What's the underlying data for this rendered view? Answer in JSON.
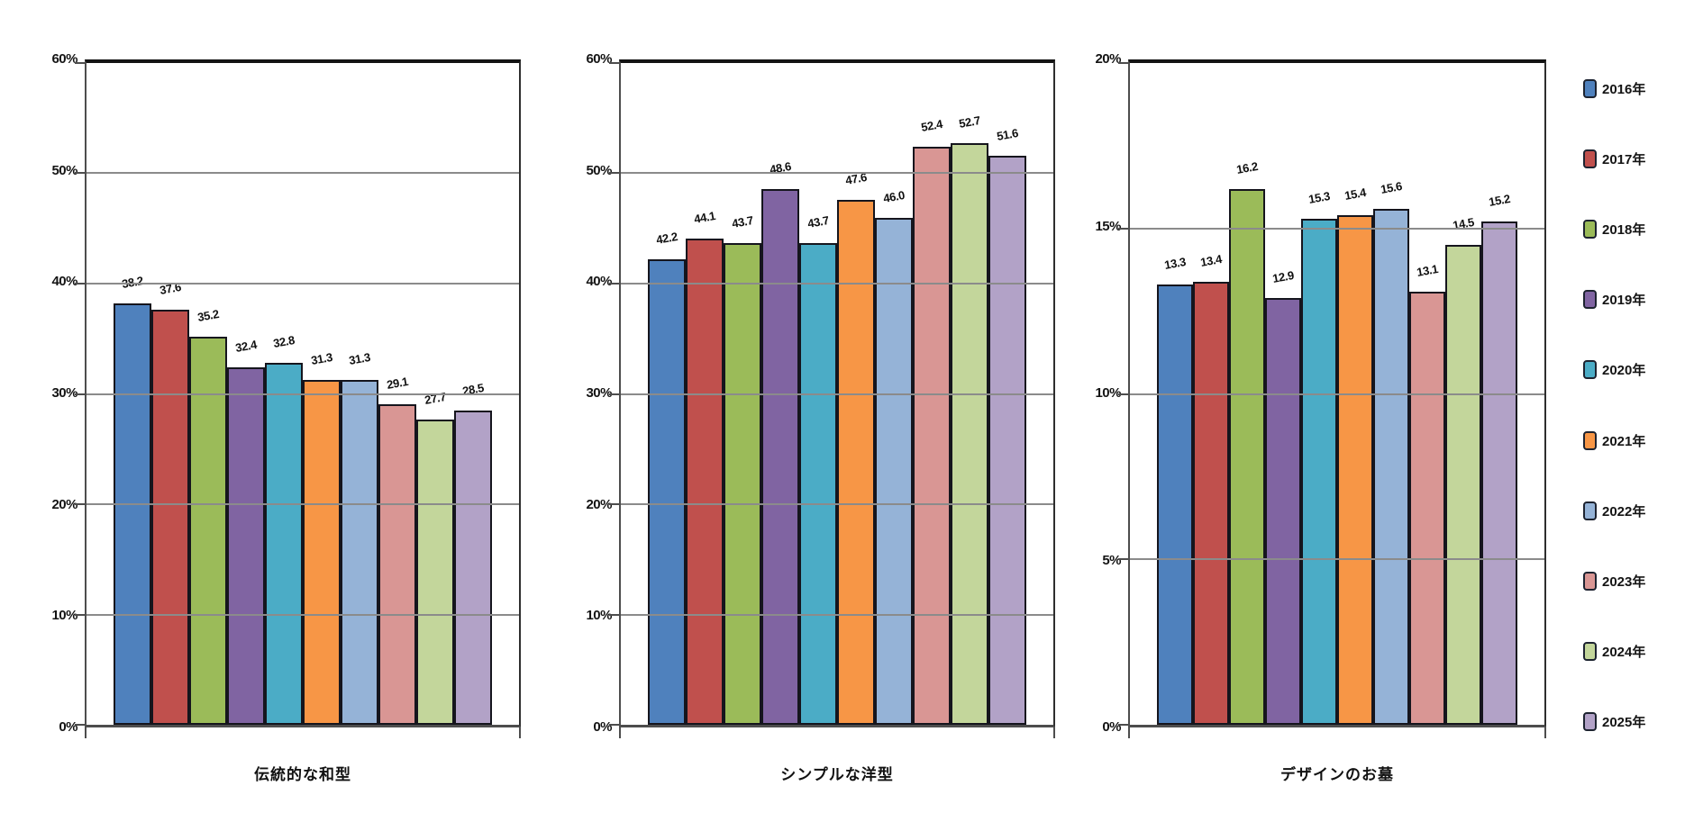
{
  "chart_data": {
    "type": "bar",
    "unit": "%",
    "grid": true,
    "legend_position": "right",
    "value_label_decimals": 1,
    "series_names": [
      "2016年",
      "2017年",
      "2018年",
      "2019年",
      "2020年",
      "2021年",
      "2022年",
      "2023年",
      "2024年",
      "2025年"
    ],
    "series_colors": [
      "#4F81BD",
      "#C0504D",
      "#9BBB59",
      "#8064A2",
      "#4BACC6",
      "#F79646",
      "#95B3D7",
      "#D99694",
      "#C3D69B",
      "#B2A2C7"
    ],
    "panels": [
      {
        "category": "伝統的な和型",
        "ylim": [
          0,
          60
        ],
        "tick_step": 10,
        "values": [
          38.2,
          37.6,
          35.2,
          32.4,
          32.8,
          31.3,
          31.3,
          29.1,
          27.7,
          28.5
        ]
      },
      {
        "category": "シンプルな洋型",
        "ylim": [
          0,
          60
        ],
        "tick_step": 10,
        "values": [
          42.2,
          44.1,
          43.7,
          48.6,
          43.7,
          47.6,
          46.0,
          52.4,
          52.7,
          51.6
        ]
      },
      {
        "category": "デザインのお墓",
        "ylim": [
          0,
          20
        ],
        "tick_step": 5,
        "values": [
          13.3,
          13.4,
          16.2,
          12.9,
          15.3,
          15.4,
          15.6,
          13.1,
          14.5,
          15.2
        ]
      }
    ]
  },
  "legend": {
    "items": [
      {
        "label": "2016年",
        "color": "#4F81BD"
      },
      {
        "label": "2017年",
        "color": "#C0504D"
      },
      {
        "label": "2018年",
        "color": "#9BBB59"
      },
      {
        "label": "2019年",
        "color": "#8064A2"
      },
      {
        "label": "2020年",
        "color": "#4BACC6"
      },
      {
        "label": "2021年",
        "color": "#F79646"
      },
      {
        "label": "2022年",
        "color": "#95B3D7"
      },
      {
        "label": "2023年",
        "color": "#D99694"
      },
      {
        "label": "2024年",
        "color": "#C3D69B"
      },
      {
        "label": "2025年",
        "color": "#B2A2C7"
      }
    ]
  }
}
